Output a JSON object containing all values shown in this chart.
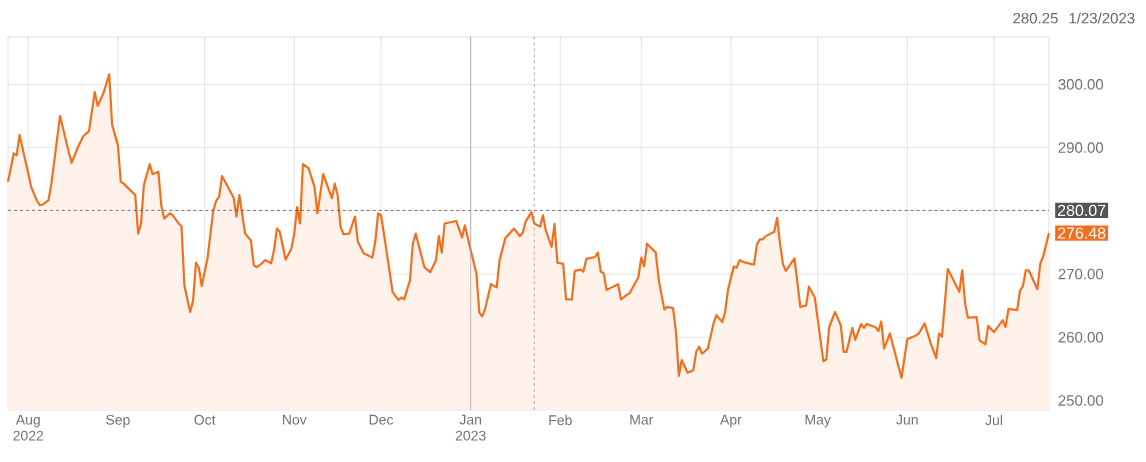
{
  "chart_data": {
    "type": "area",
    "x": [
      "2022-07-25",
      "2022-07-27",
      "2022-07-28",
      "2022-07-29",
      "2022-08-01",
      "2022-08-02",
      "2022-08-04",
      "2022-08-05",
      "2022-08-06",
      "2022-08-08",
      "2022-08-09",
      "2022-08-12",
      "2022-08-15",
      "2022-08-16",
      "2022-08-18",
      "2022-08-20",
      "2022-08-22",
      "2022-08-24",
      "2022-08-25",
      "2022-08-27",
      "2022-08-29",
      "2022-08-30",
      "2022-09-01",
      "2022-09-02",
      "2022-09-03",
      "2022-09-07",
      "2022-09-08",
      "2022-09-09",
      "2022-09-10",
      "2022-09-12",
      "2022-09-13",
      "2022-09-15",
      "2022-09-16",
      "2022-09-17",
      "2022-09-19",
      "2022-09-20",
      "2022-09-22",
      "2022-09-23",
      "2022-09-24",
      "2022-09-26",
      "2022-09-27",
      "2022-09-28",
      "2022-09-29",
      "2022-09-30",
      "2022-10-02",
      "2022-10-04",
      "2022-10-05",
      "2022-10-06",
      "2022-10-07",
      "2022-10-11",
      "2022-10-12",
      "2022-10-13",
      "2022-10-15",
      "2022-10-17",
      "2022-10-18",
      "2022-10-19",
      "2022-10-20",
      "2022-10-22",
      "2022-10-24",
      "2022-10-25",
      "2022-10-26",
      "2022-10-27",
      "2022-10-29",
      "2022-10-31",
      "2022-11-01",
      "2022-11-02",
      "2022-11-03",
      "2022-11-04",
      "2022-11-06",
      "2022-11-08",
      "2022-11-09",
      "2022-11-11",
      "2022-11-14",
      "2022-11-15",
      "2022-11-16",
      "2022-11-17",
      "2022-11-18",
      "2022-11-20",
      "2022-11-22",
      "2022-11-23",
      "2022-11-25",
      "2022-11-28",
      "2022-11-29",
      "2022-11-30",
      "2022-12-01",
      "2022-12-02",
      "2022-12-05",
      "2022-12-07",
      "2022-12-08",
      "2022-12-09",
      "2022-12-11",
      "2022-12-12",
      "2022-12-13",
      "2022-12-16",
      "2022-12-18",
      "2022-12-20",
      "2022-12-21",
      "2022-12-22",
      "2022-12-23",
      "2022-12-27",
      "2022-12-29",
      "2022-12-30",
      "2023-01-01",
      "2023-01-03",
      "2023-01-04",
      "2023-01-05",
      "2023-01-06",
      "2023-01-08",
      "2023-01-10",
      "2023-01-11",
      "2023-01-13",
      "2023-01-16",
      "2023-01-18",
      "2023-01-19",
      "2023-01-20",
      "2023-01-22",
      "2023-01-23",
      "2023-01-25",
      "2023-01-26",
      "2023-01-27",
      "2023-01-29",
      "2023-01-30",
      "2023-01-31",
      "2023-02-02",
      "2023-02-03",
      "2023-02-05",
      "2023-02-06",
      "2023-02-08",
      "2023-02-09",
      "2023-02-10",
      "2023-02-13",
      "2023-02-14",
      "2023-02-15",
      "2023-02-16",
      "2023-02-17",
      "2023-02-21",
      "2023-02-22",
      "2023-02-24",
      "2023-02-25",
      "2023-02-28",
      "2023-03-01",
      "2023-03-02",
      "2023-03-03",
      "2023-03-06",
      "2023-03-07",
      "2023-03-08",
      "2023-03-09",
      "2023-03-10",
      "2023-03-12",
      "2023-03-13",
      "2023-03-14",
      "2023-03-15",
      "2023-03-17",
      "2023-03-19",
      "2023-03-20",
      "2023-03-21",
      "2023-03-22",
      "2023-03-24",
      "2023-03-26",
      "2023-03-27",
      "2023-03-29",
      "2023-03-30",
      "2023-03-31",
      "2023-04-02",
      "2023-04-03",
      "2023-04-04",
      "2023-04-06",
      "2023-04-09",
      "2023-04-10",
      "2023-04-11",
      "2023-04-12",
      "2023-04-13",
      "2023-04-16",
      "2023-04-17",
      "2023-04-18",
      "2023-04-19",
      "2023-04-20",
      "2023-04-23",
      "2023-04-25",
      "2023-04-27",
      "2023-04-28",
      "2023-04-30",
      "2023-05-03",
      "2023-05-04",
      "2023-05-05",
      "2023-05-07",
      "2023-05-09",
      "2023-05-10",
      "2023-05-11",
      "2023-05-13",
      "2023-05-14",
      "2023-05-16",
      "2023-05-17",
      "2023-05-18",
      "2023-05-21",
      "2023-05-22",
      "2023-05-23",
      "2023-05-24",
      "2023-05-26",
      "2023-05-30",
      "2023-06-01",
      "2023-06-04",
      "2023-06-05",
      "2023-06-07",
      "2023-06-09",
      "2023-06-11",
      "2023-06-12",
      "2023-06-13",
      "2023-06-15",
      "2023-06-19",
      "2023-06-20",
      "2023-06-21",
      "2023-06-22",
      "2023-06-25",
      "2023-06-26",
      "2023-06-28",
      "2023-06-29",
      "2023-07-01",
      "2023-07-04",
      "2023-07-05",
      "2023-07-06",
      "2023-07-09",
      "2023-07-10",
      "2023-07-11",
      "2023-07-12",
      "2023-07-13",
      "2023-07-16",
      "2023-07-17",
      "2023-07-18",
      "2023-07-20"
    ],
    "series": [
      {
        "color": "#f07020",
        "values": [
          284.6,
          289.1,
          288.8,
          292.0,
          285.9,
          283.8,
          281.6,
          280.9,
          281.0,
          281.7,
          284.3,
          295.0,
          289.3,
          287.6,
          289.9,
          291.8,
          292.6,
          298.8,
          296.6,
          298.6,
          301.6,
          293.6,
          290.4,
          284.6,
          284.3,
          282.5,
          276.4,
          278.0,
          284.1,
          287.4,
          285.8,
          286.2,
          280.9,
          278.8,
          279.6,
          279.3,
          278.0,
          277.6,
          268.2,
          264.0,
          265.8,
          271.8,
          271.0,
          268.1,
          272.5,
          280.1,
          281.6,
          282.2,
          285.5,
          282.1,
          279.1,
          282.5,
          276.4,
          275.3,
          271.4,
          271.1,
          271.4,
          272.2,
          271.7,
          273.8,
          277.2,
          276.7,
          272.3,
          274.0,
          276.4,
          280.6,
          278.0,
          287.4,
          286.7,
          283.8,
          279.6,
          285.8,
          282.0,
          284.3,
          282.5,
          277.5,
          276.3,
          276.4,
          279.1,
          275.1,
          273.3,
          272.6,
          275.1,
          279.6,
          279.3,
          276.4,
          267.2,
          265.9,
          266.3,
          266.0,
          269.0,
          274.8,
          276.4,
          271.1,
          270.3,
          272.2,
          276.0,
          273.4,
          278.0,
          278.4,
          275.8,
          277.7,
          273.8,
          270.1,
          263.9,
          263.3,
          264.5,
          268.4,
          267.9,
          272.2,
          275.7,
          277.2,
          276.0,
          276.5,
          278.3,
          279.8,
          278.0,
          277.5,
          279.3,
          276.9,
          274.3,
          277.9,
          271.8,
          271.6,
          266.0,
          266.0,
          270.5,
          270.7,
          270.4,
          272.4,
          272.7,
          273.4,
          270.4,
          270.1,
          267.5,
          268.4,
          266.0,
          266.7,
          267.0,
          269.5,
          272.6,
          271.2,
          274.8,
          273.4,
          269.3,
          266.7,
          264.4,
          264.8,
          264.6,
          260.9,
          253.9,
          256.4,
          254.4,
          254.8,
          257.7,
          258.5,
          257.4,
          258.2,
          262.2,
          263.5,
          262.4,
          264.0,
          267.5,
          271.2,
          271.0,
          272.2,
          271.8,
          271.5,
          274.7,
          275.5,
          275.5,
          276.0,
          276.7,
          278.9,
          274.8,
          271.6,
          270.5,
          272.5,
          264.8,
          265.0,
          268.0,
          266.3,
          256.2,
          256.5,
          261.6,
          264.0,
          261.9,
          257.7,
          257.7,
          261.5,
          259.6,
          262.1,
          261.5,
          262.1,
          261.6,
          261.0,
          262.5,
          258.2,
          260.6,
          253.6,
          259.7,
          260.3,
          260.6,
          262.2,
          259.2,
          256.7,
          260.6,
          260.1,
          270.8,
          267.2,
          270.6,
          265.3,
          263.1,
          263.2,
          259.5,
          258.9,
          261.8,
          260.8,
          262.7,
          261.6,
          264.5,
          264.3,
          267.4,
          268.1,
          270.6,
          270.6,
          267.6,
          271.7,
          272.8,
          276.48
        ]
      }
    ],
    "xlim": [
      "2022-07-25",
      "2023-07-20"
    ],
    "xticks": [
      {
        "value": "2022-08-01",
        "label": "Aug 2022"
      },
      {
        "value": "2022-09-01",
        "label": "Sep"
      },
      {
        "value": "2022-10-01",
        "label": "Oct"
      },
      {
        "value": "2022-11-01",
        "label": "Nov"
      },
      {
        "value": "2022-12-01",
        "label": "Dec"
      },
      {
        "value": "2023-01-01",
        "label": "Jan 2023"
      },
      {
        "value": "2023-02-01",
        "label": "Feb"
      },
      {
        "value": "2023-03-01",
        "label": "Mar"
      },
      {
        "value": "2023-04-01",
        "label": "Apr"
      },
      {
        "value": "2023-05-01",
        "label": "May"
      },
      {
        "value": "2023-06-01",
        "label": "Jun"
      },
      {
        "value": "2023-07-01",
        "label": "Jul"
      }
    ],
    "ylim": [
      248.5,
      307.5
    ],
    "yticks": [
      {
        "value": 250,
        "label": "250.00"
      },
      {
        "value": 260,
        "label": "260.00"
      },
      {
        "value": 270,
        "label": "270.00"
      },
      {
        "value": 280,
        "label": null
      },
      {
        "value": 290,
        "label": "290.00"
      },
      {
        "value": 300,
        "label": "300.00"
      }
    ],
    "grid": true,
    "marker": "none",
    "ref_lines": [
      {
        "axis": "y",
        "value": 280.07,
        "label": "280.07",
        "color": "#555555",
        "line_style": "dashed"
      },
      {
        "axis": "x",
        "value": "2023-01-23",
        "color": "#999999",
        "line_style": "dashed"
      },
      {
        "axis": "x",
        "value": "2023-01-01",
        "color": "#aaaaaa",
        "line_style": "solid"
      }
    ],
    "annotations": [
      "280.25",
      "1/23/2023",
      {
        "text": "276.48",
        "x": "2023-07-20",
        "y": 276.48
      }
    ]
  }
}
